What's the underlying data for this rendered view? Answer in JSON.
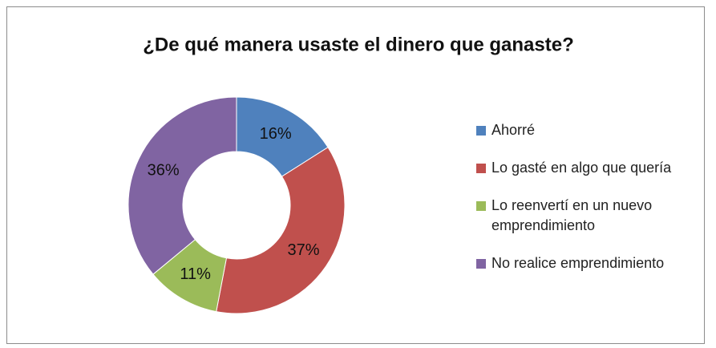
{
  "chart_data": {
    "type": "pie",
    "title": "¿De qué manera usaste el dinero que ganaste?",
    "categories": [
      "Ahorré",
      "Lo gasté en algo que quería",
      "Lo reenvertí en un nuevo emprendimiento",
      "No realice emprendimiento"
    ],
    "values": [
      16,
      37,
      11,
      36
    ],
    "value_labels": [
      "16%",
      "37%",
      "11%",
      "36%"
    ],
    "colors": [
      "#4f81bd",
      "#c0504d",
      "#9bbb59",
      "#8064a2"
    ],
    "donut": true,
    "legend": "right"
  }
}
